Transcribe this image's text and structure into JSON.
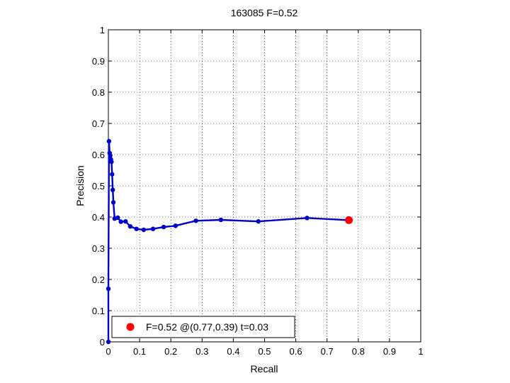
{
  "chart_data": {
    "type": "line",
    "title": "163085 F=0.52",
    "xlabel": "Recall",
    "ylabel": "Precision",
    "xlim": [
      0,
      1
    ],
    "ylim": [
      0,
      1
    ],
    "xticks": [
      "0",
      "0.1",
      "0.2",
      "0.3",
      "0.4",
      "0.5",
      "0.6",
      "0.7",
      "0.8",
      "0.9",
      "1"
    ],
    "yticks": [
      "0",
      "0.1",
      "0.2",
      "0.3",
      "0.4",
      "0.5",
      "0.6",
      "0.7",
      "0.8",
      "0.9",
      "1"
    ],
    "grid": true,
    "series": [
      {
        "color": "#0000cc",
        "marker": "dot",
        "x": [
          0.0,
          0.0,
          0.002,
          0.004,
          0.006,
          0.008,
          0.01,
          0.012,
          0.014,
          0.016,
          0.02,
          0.03,
          0.04,
          0.055,
          0.07,
          0.09,
          0.113,
          0.143,
          0.177,
          0.215,
          0.28,
          0.36,
          0.48,
          0.636,
          0.77
        ],
        "y": [
          0.0,
          0.17,
          0.643,
          0.605,
          0.597,
          0.585,
          0.577,
          0.537,
          0.487,
          0.447,
          0.395,
          0.398,
          0.385,
          0.386,
          0.37,
          0.362,
          0.359,
          0.362,
          0.368,
          0.372,
          0.388,
          0.391,
          0.386,
          0.397,
          0.39
        ]
      }
    ],
    "highlight": {
      "x": 0.77,
      "y": 0.39,
      "color": "#ff0000"
    },
    "legend": {
      "position": "bottom-left",
      "label": "F=0.52 @(0.77,0.39) t=0.03"
    }
  }
}
